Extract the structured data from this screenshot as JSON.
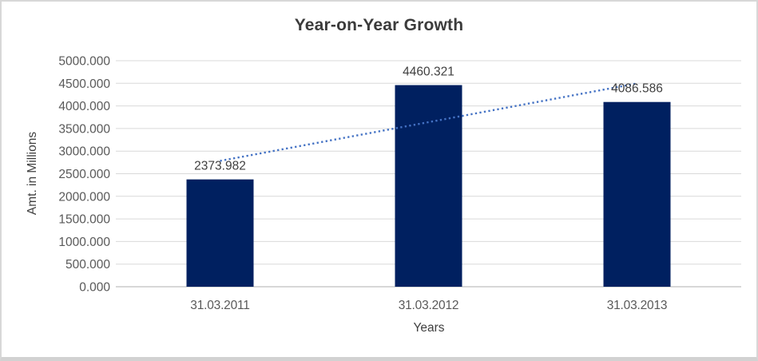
{
  "window": {
    "background": "#FFFFFF",
    "frame_border_color": "#D7D7D7"
  },
  "chart_data": {
    "type": "bar",
    "title": "Year-on-Year Growth",
    "categories": [
      "31.03.2011",
      "31.03.2012",
      "31.03.2013"
    ],
    "values": [
      2373.982,
      4460.321,
      4086.586
    ],
    "data_labels": [
      "2373.982",
      "4460.321",
      "4086.586"
    ],
    "xlabel": "Years",
    "ylabel": "Amt. in Millions",
    "ylim": [
      0,
      5000
    ],
    "ytick_step": 500,
    "ytick_labels": [
      "0.000",
      "500.000",
      "1000.000",
      "1500.000",
      "2000.000",
      "2500.000",
      "3000.000",
      "3500.000",
      "4000.000",
      "4500.000",
      "5000.000"
    ],
    "grid": true,
    "legend": "none",
    "bar_color": "#002060",
    "trendline": {
      "type": "linear",
      "style": "dotted",
      "color": "#4472C4"
    },
    "gridline_color": "#D9D9D9",
    "axis_line_color": "#BFBFBF",
    "title_color": "#3B3B3B",
    "tick_color": "#595959",
    "data_label_color": "#404040",
    "axis_title_color": "#404040"
  }
}
